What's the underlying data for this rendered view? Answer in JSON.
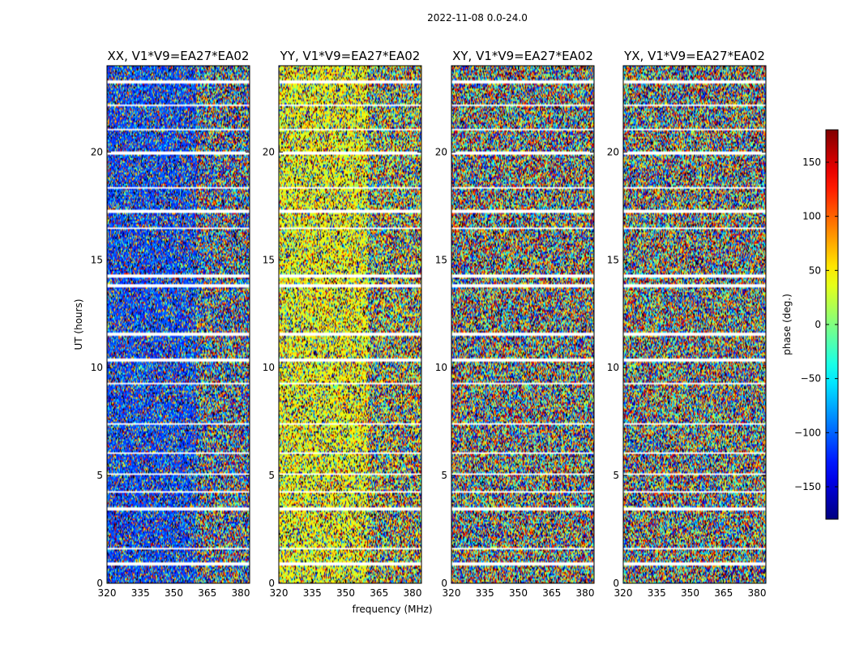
{
  "figure": {
    "suptitle": "2022-11-08 0.0-24.0"
  },
  "chart_data": {
    "type": "heatmap",
    "title": "2022-11-08 0.0-24.0",
    "xlabel": "frequency (MHz)",
    "ylabel": "UT (hours)",
    "xlim": [
      320,
      384
    ],
    "ylim": [
      0,
      24
    ],
    "x_ticks": [
      320,
      335,
      350,
      365,
      380
    ],
    "y_ticks": [
      0,
      5,
      10,
      15,
      20
    ],
    "panels": [
      {
        "name": "XX",
        "title": "XX, V1*V9=EA27*EA02",
        "phase_bias_deg": -110,
        "bias_strength": 0.55
      },
      {
        "name": "YY",
        "title": "YY, V1*V9=EA27*EA02",
        "phase_bias_deg": 40,
        "bias_strength": 0.55
      },
      {
        "name": "XY",
        "title": "XY, V1*V9=EA27*EA02",
        "phase_bias_deg": 0,
        "bias_strength": 0.0
      },
      {
        "name": "YX",
        "title": "YX, V1*V9=EA27*EA02",
        "phase_bias_deg": 0,
        "bias_strength": 0.0
      }
    ],
    "flagged_ut_ranges_hours": [
      [
        0.85,
        0.95
      ],
      [
        1.6,
        1.68
      ],
      [
        2.45,
        2.5
      ],
      [
        3.4,
        3.5
      ],
      [
        4.2,
        4.26
      ],
      [
        5.0,
        5.12
      ],
      [
        6.0,
        6.08
      ],
      [
        7.35,
        7.45
      ],
      [
        9.2,
        9.28
      ],
      [
        10.3,
        10.4
      ],
      [
        11.5,
        11.6
      ],
      [
        13.75,
        13.85
      ],
      [
        14.2,
        14.3
      ],
      [
        16.4,
        16.5
      ],
      [
        17.2,
        17.35
      ],
      [
        18.3,
        18.38
      ],
      [
        19.9,
        20.05
      ],
      [
        21.0,
        21.06
      ],
      [
        22.1,
        22.2
      ],
      [
        23.2,
        23.35
      ]
    ],
    "colorbar": {
      "label": "phase (deg.)",
      "colormap": "jet",
      "range": [
        -180,
        180
      ],
      "ticks": [
        -150,
        -100,
        -50,
        0,
        50,
        100,
        150
      ],
      "tick_labels": [
        "−150",
        "−100",
        "−50",
        "0",
        "50",
        "100",
        "150"
      ]
    }
  }
}
